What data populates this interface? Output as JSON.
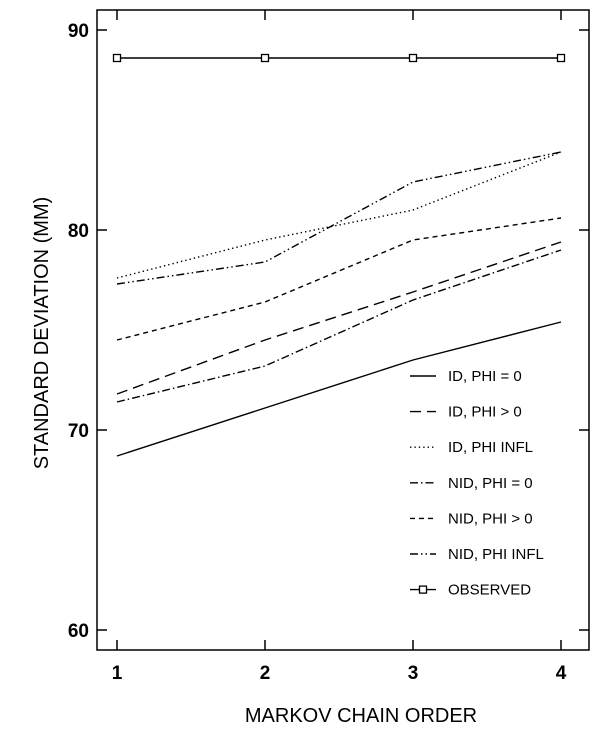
{
  "chart_data": {
    "type": "line",
    "xlabel": "MARKOV CHAIN ORDER",
    "ylabel": "STANDARD DEVIATION (MM)",
    "x": [
      1,
      2,
      3,
      4
    ],
    "xlim": [
      1,
      4
    ],
    "ylim": [
      59,
      91
    ],
    "xticks": [
      1,
      2,
      3,
      4
    ],
    "yticks": [
      60,
      70,
      80,
      90
    ],
    "grid": false,
    "legend_position": "lower-right",
    "series": [
      {
        "name": "ID, PHI = 0",
        "dash": "solid",
        "values": [
          68.7,
          71.1,
          73.5,
          75.4
        ]
      },
      {
        "name": "ID, PHI > 0",
        "dash": "long-dash",
        "values": [
          71.8,
          74.5,
          76.9,
          79.4
        ]
      },
      {
        "name": "ID, PHI INFL",
        "dash": "dotted",
        "values": [
          77.6,
          79.5,
          81.0,
          83.9
        ]
      },
      {
        "name": "NID, PHI = 0",
        "dash": "dash-dot",
        "values": [
          71.4,
          73.2,
          76.5,
          79.0
        ]
      },
      {
        "name": "NID, PHI > 0",
        "dash": "short-dash",
        "values": [
          74.5,
          76.4,
          79.5,
          80.6
        ]
      },
      {
        "name": "NID, PHI INFL",
        "dash": "dash-dot-dot",
        "values": [
          77.3,
          78.4,
          82.4,
          83.9
        ]
      },
      {
        "name": "OBSERVED",
        "dash": "solid",
        "marker": "square",
        "values": [
          88.6,
          88.6,
          88.6,
          88.6
        ]
      }
    ]
  }
}
